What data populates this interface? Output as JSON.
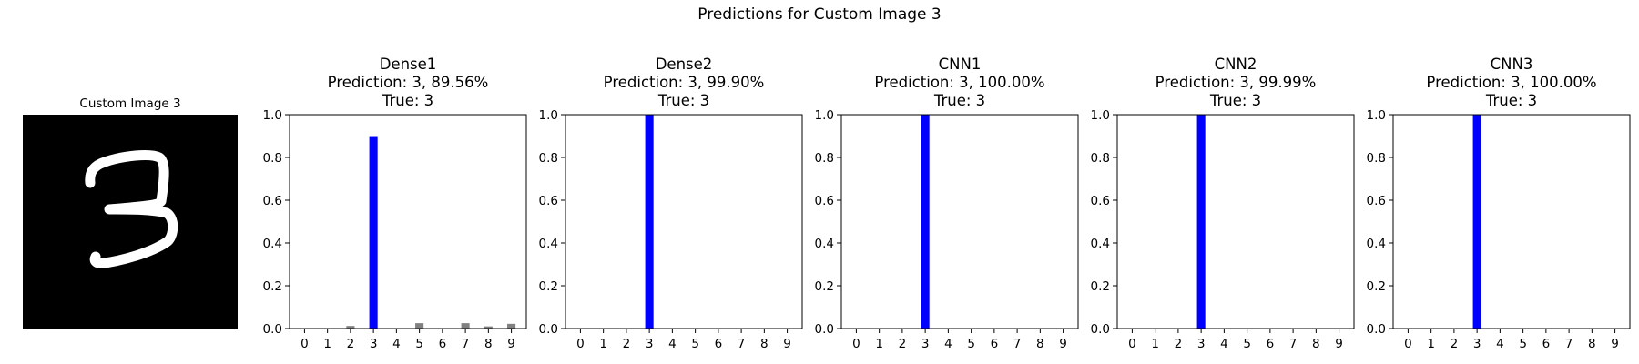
{
  "figure": {
    "title": "Predictions for Custom Image 3"
  },
  "image_panel": {
    "title": "Custom Image 3",
    "digit": "3",
    "background": "#000000",
    "stroke": "#ffffff"
  },
  "colors": {
    "predicted": "#0000ff",
    "other": "#808080"
  },
  "chart_data": [
    {
      "type": "bar",
      "title": "Dense1\nPrediction: 3, 89.56%\nTrue: 3",
      "categories": [
        "0",
        "1",
        "2",
        "3",
        "4",
        "5",
        "6",
        "7",
        "8",
        "9"
      ],
      "values": [
        0.001,
        0.001,
        0.012,
        0.8956,
        0.002,
        0.025,
        0.002,
        0.025,
        0.01,
        0.022
      ],
      "predicted_index": 3,
      "ylim": [
        0,
        1
      ],
      "yticks": [
        "0.0",
        "0.2",
        "0.4",
        "0.6",
        "0.8",
        "1.0"
      ]
    },
    {
      "type": "bar",
      "title": "Dense2\nPrediction: 3, 99.90%\nTrue: 3",
      "categories": [
        "0",
        "1",
        "2",
        "3",
        "4",
        "5",
        "6",
        "7",
        "8",
        "9"
      ],
      "values": [
        0,
        0,
        0.0002,
        0.999,
        0,
        0.0005,
        0,
        0.0002,
        0.0001,
        0
      ],
      "predicted_index": 3,
      "ylim": [
        0,
        1
      ],
      "yticks": [
        "0.0",
        "0.2",
        "0.4",
        "0.6",
        "0.8",
        "1.0"
      ]
    },
    {
      "type": "bar",
      "title": "CNN1\nPrediction: 3, 100.00%\nTrue: 3",
      "categories": [
        "0",
        "1",
        "2",
        "3",
        "4",
        "5",
        "6",
        "7",
        "8",
        "9"
      ],
      "values": [
        0,
        0,
        0,
        1.0,
        0,
        0,
        0,
        0,
        0,
        0
      ],
      "predicted_index": 3,
      "ylim": [
        0,
        1
      ],
      "yticks": [
        "0.0",
        "0.2",
        "0.4",
        "0.6",
        "0.8",
        "1.0"
      ]
    },
    {
      "type": "bar",
      "title": "CNN2\nPrediction: 3, 99.99%\nTrue: 3",
      "categories": [
        "0",
        "1",
        "2",
        "3",
        "4",
        "5",
        "6",
        "7",
        "8",
        "9"
      ],
      "values": [
        0,
        0,
        0,
        0.9999,
        0,
        0.0001,
        0,
        0,
        0,
        0
      ],
      "predicted_index": 3,
      "ylim": [
        0,
        1
      ],
      "yticks": [
        "0.0",
        "0.2",
        "0.4",
        "0.6",
        "0.8",
        "1.0"
      ]
    },
    {
      "type": "bar",
      "title": "CNN3\nPrediction: 3, 100.00%\nTrue: 3",
      "categories": [
        "0",
        "1",
        "2",
        "3",
        "4",
        "5",
        "6",
        "7",
        "8",
        "9"
      ],
      "values": [
        0,
        0,
        0,
        1.0,
        0,
        0,
        0,
        0,
        0,
        0
      ],
      "predicted_index": 3,
      "ylim": [
        0,
        1
      ],
      "yticks": [
        "0.0",
        "0.2",
        "0.4",
        "0.6",
        "0.8",
        "1.0"
      ]
    }
  ]
}
